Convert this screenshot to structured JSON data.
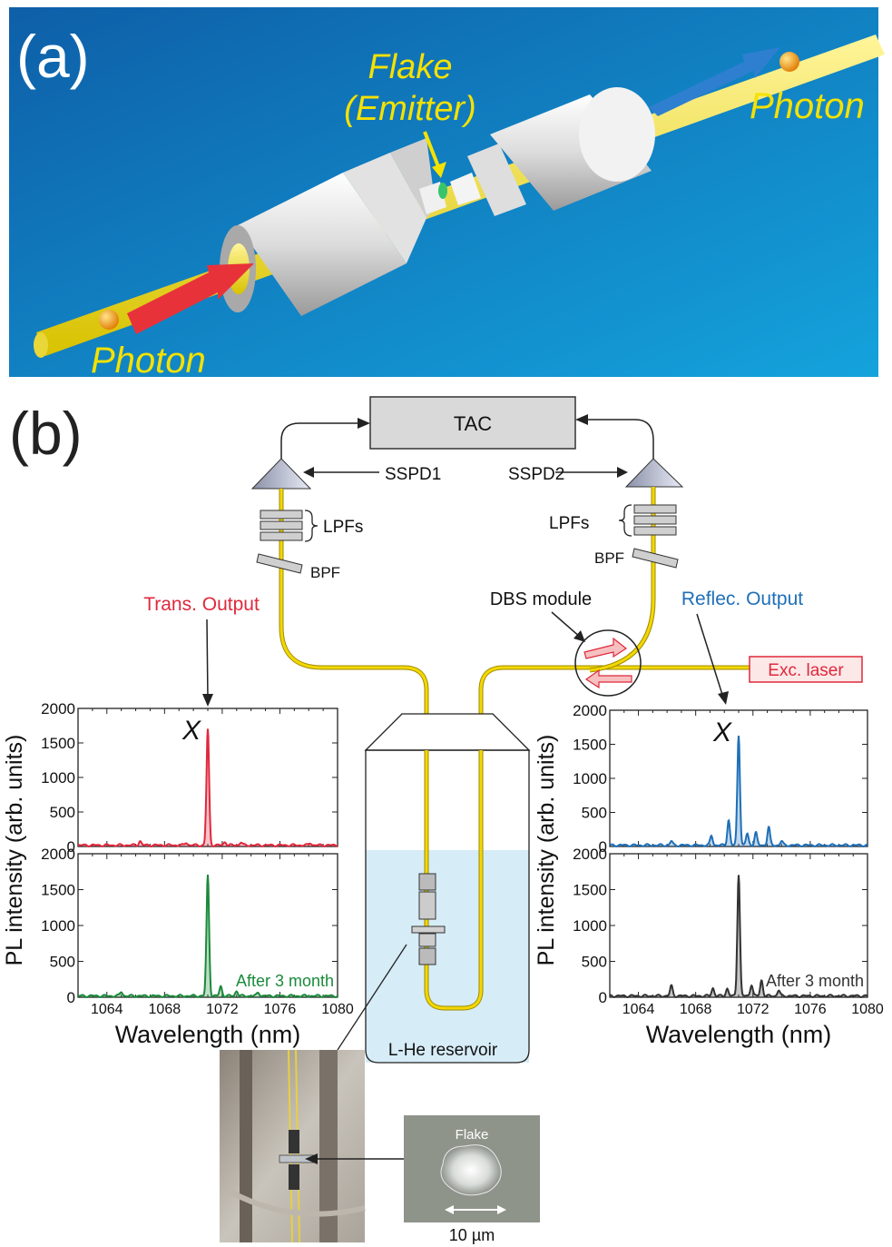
{
  "panel_a": {
    "label": "(a)",
    "flake_label_line1": "Flake",
    "flake_label_line2": "(Emitter)",
    "photon_right": "Photon",
    "photon_left": "Photon",
    "colors": {
      "background": "#1a7fc4",
      "fiber": "#f5e64a",
      "ferrule": "#e8e8e8",
      "arrow_red": "#e8323a",
      "arrow_blue": "#2f7fd0",
      "label": "#f5e100",
      "photon": "#f2a51a"
    }
  },
  "panel_b": {
    "label": "(b)",
    "tac": "TAC",
    "sspd1": "SSPD1",
    "sspd2": "SSPD2",
    "lpfs_left": "LPFs",
    "lpfs_right": "LPFs",
    "bpf_left": "BPF",
    "bpf_right": "BPF",
    "trans_output": "Trans. Output",
    "reflec_output": "Reflec. Output",
    "dbs_module": "DBS module",
    "exc_laser": "Exc. laser",
    "reservoir": "L-He reservoir",
    "flake_photo_label": "Flake",
    "scale_bar": "10 µm",
    "colors": {
      "trans": "#e0283c",
      "reflec": "#1e6fb8",
      "fiber": "#e8c800",
      "liquid": "#d6ecf7"
    }
  },
  "chart_data": [
    {
      "type": "line",
      "name": "left-top",
      "color": "#e0283c",
      "peak_label": "X",
      "annotation": "",
      "ylabel": "PL intensity (arb. units)",
      "xlabel": "Wavelength (nm)",
      "xlim": [
        1062,
        1080
      ],
      "ylim": [
        0,
        2000
      ],
      "xticks": [
        "1064",
        "1068",
        "1072",
        "1076",
        "1080"
      ],
      "yticks": [
        "0",
        "500",
        "1000",
        "1500",
        "2000"
      ],
      "peaks": [
        [
          1071.0,
          1680
        ],
        [
          1066.3,
          60
        ],
        [
          1069.5,
          40
        ],
        [
          1072.2,
          50
        ],
        [
          1073.3,
          45
        ],
        [
          1078.1,
          35
        ]
      ]
    },
    {
      "type": "line",
      "name": "left-bottom",
      "color": "#1a8a3a",
      "peak_label": "",
      "annotation": "After 3 month",
      "ylabel": "",
      "xlabel": "Wavelength (nm)",
      "xlim": [
        1062,
        1080
      ],
      "ylim": [
        0,
        2000
      ],
      "xticks": [
        "1064",
        "1068",
        "1072",
        "1076",
        "1080"
      ],
      "yticks": [
        "0",
        "500",
        "1000",
        "1500",
        "2000"
      ],
      "peaks": [
        [
          1071.0,
          1680
        ],
        [
          1071.9,
          130
        ],
        [
          1065.0,
          60
        ],
        [
          1073.0,
          70
        ],
        [
          1074.5,
          50
        ]
      ]
    },
    {
      "type": "line",
      "name": "right-top",
      "color": "#1e6fb8",
      "peak_label": "X",
      "annotation": "",
      "ylabel": "PL intensity (arb. units)",
      "xlabel": "Wavelength (nm)",
      "xlim": [
        1062,
        1080
      ],
      "ylim": [
        0,
        2000
      ],
      "xticks": [
        "1064",
        "1068",
        "1072",
        "1076",
        "1080"
      ],
      "yticks": [
        "0",
        "500",
        "1000",
        "1500",
        "2000"
      ],
      "peaks": [
        [
          1071.0,
          1620
        ],
        [
          1070.3,
          370
        ],
        [
          1071.6,
          170
        ],
        [
          1072.2,
          190
        ],
        [
          1073.1,
          270
        ],
        [
          1069.1,
          140
        ],
        [
          1066.3,
          60
        ],
        [
          1074.0,
          60
        ]
      ]
    },
    {
      "type": "line",
      "name": "right-bottom",
      "color": "#333333",
      "peak_label": "",
      "annotation": "After 3 month",
      "ylabel": "",
      "xlabel": "Wavelength (nm)",
      "xlim": [
        1062,
        1080
      ],
      "ylim": [
        0,
        2000
      ],
      "xticks": [
        "1064",
        "1068",
        "1072",
        "1076",
        "1080"
      ],
      "yticks": [
        "0",
        "500",
        "1000",
        "1500",
        "2000"
      ],
      "peaks": [
        [
          1071.0,
          1700
        ],
        [
          1066.3,
          140
        ],
        [
          1069.2,
          110
        ],
        [
          1070.2,
          100
        ],
        [
          1071.9,
          160
        ],
        [
          1072.6,
          220
        ],
        [
          1073.8,
          80
        ]
      ]
    }
  ]
}
